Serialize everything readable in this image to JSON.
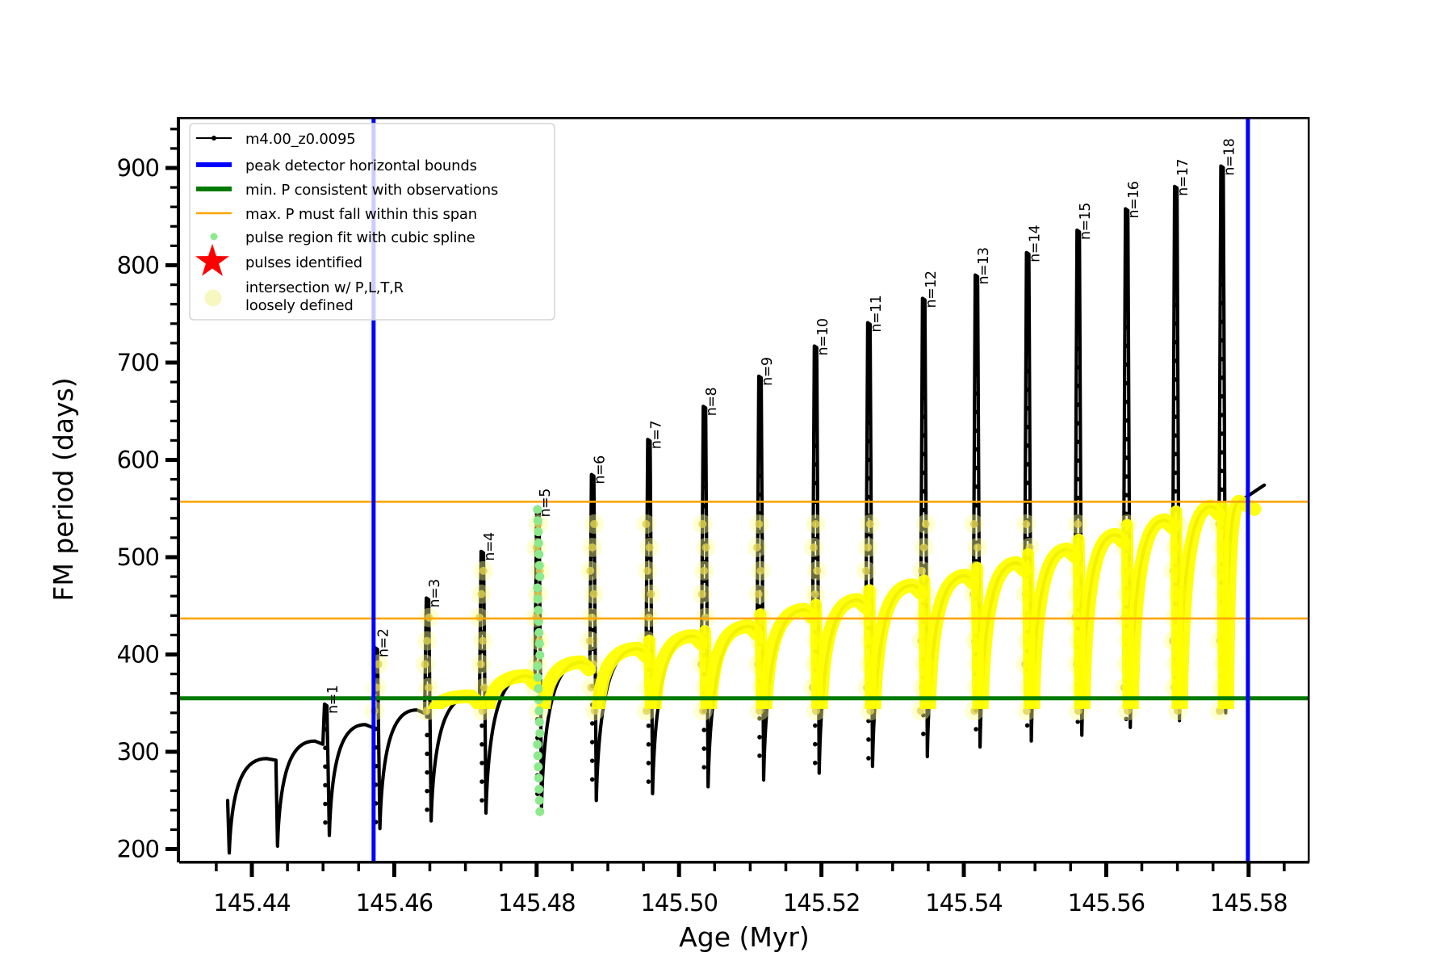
{
  "figure": {
    "background": "#ffffff"
  },
  "axes": {
    "xlabel": "Age (Myr)",
    "ylabel": "FM period (days)",
    "xlim": [
      145.4305,
      145.5885
    ],
    "ylim": [
      186,
      952
    ],
    "x_tick_values": [
      145.44,
      145.46,
      145.48,
      145.5,
      145.52,
      145.54,
      145.56,
      145.58
    ],
    "x_tick_labels": [
      "145.44",
      "145.46",
      "145.48",
      "145.50",
      "145.52",
      "145.54",
      "145.56",
      "145.58"
    ],
    "y_tick_values": [
      200,
      300,
      400,
      500,
      600,
      700,
      800,
      900
    ],
    "y_tick_labels": [
      "200",
      "300",
      "400",
      "500",
      "600",
      "700",
      "800",
      "900"
    ],
    "x_minor_step": 0.005,
    "y_minor_step": 20,
    "grid": "off"
  },
  "colors": {
    "series": "#000000",
    "blue_bound": "#0000ff",
    "green_min": "#007a00",
    "orange_span": "#ffa500",
    "yellow_intersection": "#ffff00",
    "pale_yellow": "#ffff99",
    "light_green": "#8ce98c",
    "red_star": "#ff0000"
  },
  "legend": {
    "entries": [
      {
        "label": "m4.00_z0.0095",
        "type": "line-dot",
        "color": "#000000"
      },
      {
        "label": "peak detector horizontal bounds",
        "type": "thick-line",
        "color": "#0000ff"
      },
      {
        "label": "min. P consistent with observations",
        "type": "thick-line",
        "color": "#007a00"
      },
      {
        "label": "max. P must fall within this span",
        "type": "thin-line",
        "color": "#ffa500"
      },
      {
        "label": "pulse region fit with cubic spline",
        "type": "small-dot",
        "color": "#8ce98c"
      },
      {
        "label": "pulses identified",
        "type": "star",
        "color": "#ff0000"
      },
      {
        "label": "intersection w/ P,L,T,R",
        "label_line2": "loosely defined",
        "type": "big-pale-dot",
        "color": "#f7f7c0"
      }
    ]
  },
  "chart_data": {
    "type": "line",
    "series_name": "m4.00_z0.0095",
    "xlabel": "Age (Myr)",
    "ylabel": "FM period (days)",
    "ref_lines": {
      "blue_vertical_ages": [
        145.4571,
        145.5799
      ],
      "green_min_P": 355,
      "orange_span_P": [
        437,
        557
      ]
    },
    "pre_pulse": {
      "start_age": 145.4366,
      "start_P": 250,
      "start_drop_P": 196,
      "arcs": [
        {
          "top_age": 145.4421,
          "top_P": 293,
          "drop_age": 145.4436,
          "drop_P": 203
        }
      ]
    },
    "pulses": [
      {
        "label": "n=1",
        "n": 1,
        "age": 145.4502,
        "peak_P": 349,
        "dip_P": 214,
        "arc_top_before_P": 311
      },
      {
        "label": "n=2",
        "n": 2,
        "age": 145.4573,
        "peak_P": 407,
        "dip_P": 221,
        "arc_top_before_P": 328
      },
      {
        "label": "n=3",
        "n": 3,
        "age": 145.4645,
        "peak_P": 458,
        "dip_P": 229,
        "arc_top_before_P": 343
      },
      {
        "label": "n=4",
        "n": 4,
        "age": 145.4722,
        "peak_P": 506,
        "dip_P": 237,
        "arc_top_before_P": 357
      },
      {
        "label": "n=5",
        "n": 5,
        "age": 145.48,
        "peak_P": 551,
        "dip_P": 243,
        "arc_top_before_P": 378
      },
      {
        "label": "n=6",
        "n": 6,
        "age": 145.4877,
        "peak_P": 585,
        "dip_P": 250,
        "arc_top_before_P": 392
      },
      {
        "label": "n=7",
        "n": 7,
        "age": 145.4956,
        "peak_P": 621,
        "dip_P": 257,
        "arc_top_before_P": 406
      },
      {
        "label": "n=8",
        "n": 8,
        "age": 145.5034,
        "peak_P": 655,
        "dip_P": 264,
        "arc_top_before_P": 419
      },
      {
        "label": "n=9",
        "n": 9,
        "age": 145.5112,
        "peak_P": 686,
        "dip_P": 271,
        "arc_top_before_P": 429
      },
      {
        "label": "n=10",
        "n": 10,
        "age": 145.519,
        "peak_P": 717,
        "dip_P": 278,
        "arc_top_before_P": 446
      },
      {
        "label": "n=11",
        "n": 11,
        "age": 145.5265,
        "peak_P": 741,
        "dip_P": 285,
        "arc_top_before_P": 456
      },
      {
        "label": "n=12",
        "n": 12,
        "age": 145.5342,
        "peak_P": 766,
        "dip_P": 295,
        "arc_top_before_P": 471
      },
      {
        "label": "n=13",
        "n": 13,
        "age": 145.5416,
        "peak_P": 790,
        "dip_P": 305,
        "arc_top_before_P": 481
      },
      {
        "label": "n=14",
        "n": 14,
        "age": 145.5488,
        "peak_P": 813,
        "dip_P": 311,
        "arc_top_before_P": 494
      },
      {
        "label": "n=15",
        "n": 15,
        "age": 145.5559,
        "peak_P": 836,
        "dip_P": 317,
        "arc_top_before_P": 508
      },
      {
        "label": "n=16",
        "n": 16,
        "age": 145.5627,
        "peak_P": 858,
        "dip_P": 325,
        "arc_top_before_P": 523
      },
      {
        "label": "n=17",
        "n": 17,
        "age": 145.5696,
        "peak_P": 881,
        "dip_P": 332,
        "arc_top_before_P": 538
      },
      {
        "label": "n=18",
        "n": 18,
        "age": 145.5761,
        "peak_P": 902,
        "dip_P": 340,
        "arc_top_before_P": 552
      }
    ],
    "final_arc_top_P": 557,
    "tail_end": {
      "age": 145.5822,
      "P": 574
    },
    "green_dot_pulse_n": 5,
    "green_dot_P_range": [
      228,
      549
    ],
    "pale_dot_P_range": [
      358,
      549
    ],
    "yellow_descent_from_pulse_n": 7,
    "yellow_arcs_from_pulse_n": 4
  }
}
